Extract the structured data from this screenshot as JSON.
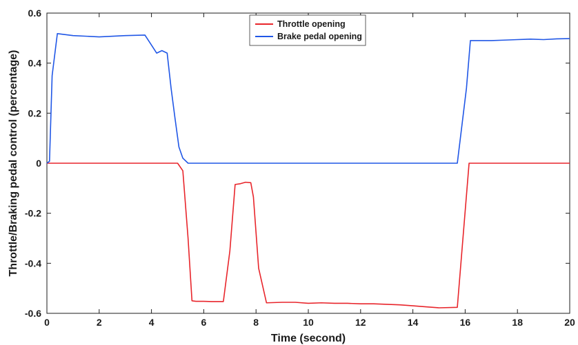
{
  "chart_data": {
    "type": "line",
    "title": "",
    "xlabel": "Time (second)",
    "ylabel": "Throttle/Braking pedal control (percentage)",
    "xlim": [
      0,
      20
    ],
    "ylim": [
      -0.6,
      0.6
    ],
    "xticks": [
      0,
      2,
      4,
      6,
      8,
      10,
      12,
      14,
      16,
      18,
      20
    ],
    "xtick_labels": [
      "0",
      "2",
      "4",
      "6",
      "8",
      "10",
      "12",
      "14",
      "16",
      "18",
      "20"
    ],
    "yticks": [
      -0.6,
      -0.4,
      -0.2,
      0,
      0.2,
      0.4,
      0.6
    ],
    "ytick_labels": [
      "-0.6",
      "-0.4",
      "-0.2",
      "0",
      "0.2",
      "0.4",
      "0.6"
    ],
    "grid": false,
    "legend_position": "top-center",
    "series": [
      {
        "name": "Throttle opening",
        "color": "#e8242a",
        "x": [
          0,
          1,
          2,
          3,
          4,
          5.0,
          5.2,
          5.4,
          5.55,
          5.7,
          6.0,
          6.3,
          6.75,
          7.0,
          7.2,
          7.4,
          7.6,
          7.8,
          7.9,
          8.1,
          8.4,
          9.0,
          9.5,
          10.0,
          10.5,
          11.0,
          11.5,
          12.0,
          12.5,
          13.0,
          13.5,
          14.0,
          14.5,
          15.0,
          15.7,
          16.15,
          17.0,
          18.0,
          19.0,
          20.0
        ],
        "y": [
          0,
          0,
          0,
          0,
          0,
          0,
          -0.03,
          -0.3,
          -0.55,
          -0.552,
          -0.552,
          -0.553,
          -0.553,
          -0.35,
          -0.085,
          -0.082,
          -0.076,
          -0.078,
          -0.135,
          -0.42,
          -0.558,
          -0.556,
          -0.556,
          -0.56,
          -0.558,
          -0.56,
          -0.56,
          -0.562,
          -0.562,
          -0.564,
          -0.566,
          -0.57,
          -0.574,
          -0.578,
          -0.576,
          0,
          0,
          0,
          0,
          0
        ]
      },
      {
        "name": "Brake pedal opening",
        "color": "#1f56e6",
        "x": [
          0,
          0.1,
          0.2,
          0.4,
          1.0,
          2.0,
          3.0,
          3.75,
          3.95,
          4.2,
          4.4,
          4.6,
          4.75,
          4.9,
          5.05,
          5.2,
          5.4,
          5.6,
          6.0,
          8.0,
          10.0,
          12.0,
          14.0,
          15.7,
          16.05,
          16.2,
          17.0,
          17.5,
          18.0,
          18.5,
          19.0,
          19.5,
          20.0
        ],
        "y": [
          0,
          0.008,
          0.35,
          0.518,
          0.51,
          0.505,
          0.51,
          0.512,
          0.48,
          0.44,
          0.45,
          0.44,
          0.3,
          0.18,
          0.065,
          0.02,
          0.0,
          0.0,
          0.0,
          0.0,
          0.0,
          0.0,
          0.0,
          0.0,
          0.3,
          0.49,
          0.49,
          0.492,
          0.494,
          0.496,
          0.494,
          0.497,
          0.498
        ]
      }
    ]
  }
}
